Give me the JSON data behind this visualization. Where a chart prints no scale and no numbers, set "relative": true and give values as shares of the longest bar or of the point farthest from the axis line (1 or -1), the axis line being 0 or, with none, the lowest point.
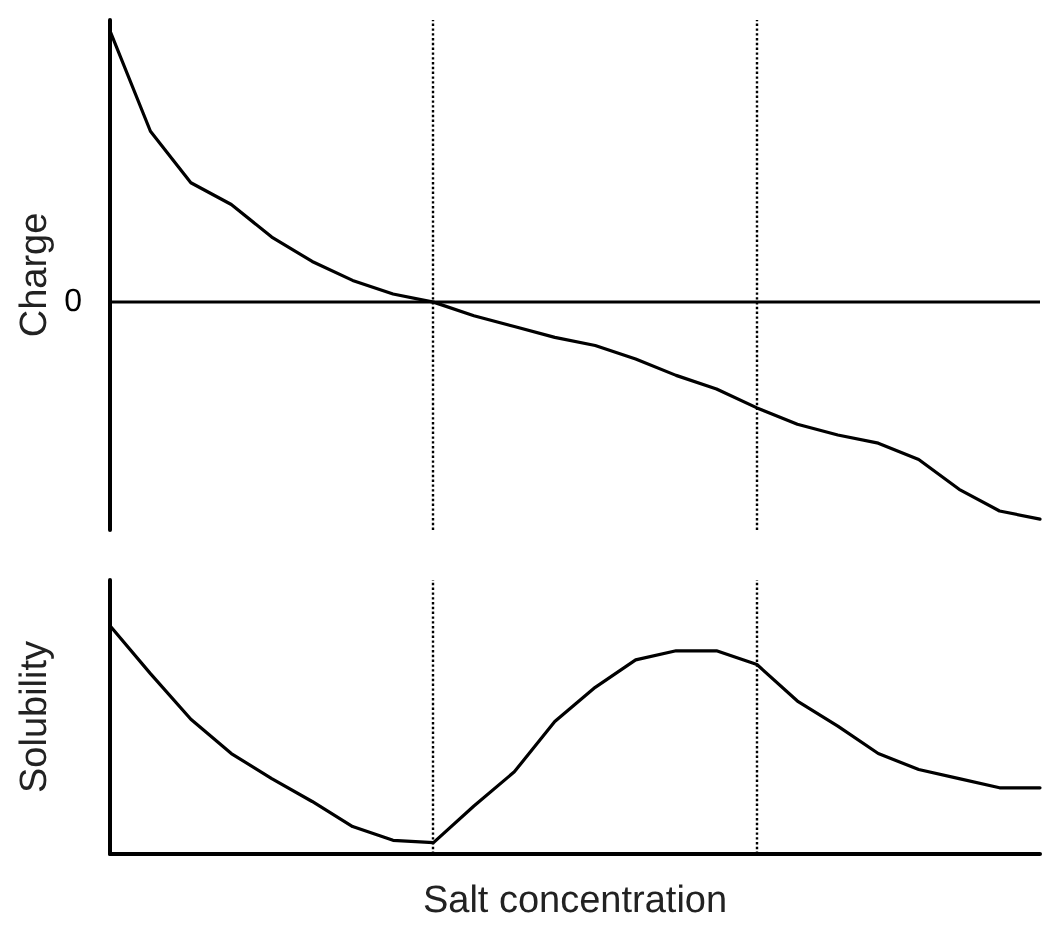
{
  "chart_data": [
    {
      "type": "line",
      "ylabel": "Charge",
      "relative": true,
      "tick_labels": false,
      "marker": "none",
      "line_style": "solid",
      "categories": [
        null,
        null,
        null,
        null,
        null,
        null,
        null,
        null,
        null,
        null,
        null,
        null,
        null,
        null,
        null,
        null,
        null,
        null,
        null,
        null,
        null,
        null,
        null,
        null
      ],
      "series": [
        {
          "color": "#000000",
          "values": [
            1.0,
            0.63,
            0.44,
            0.36,
            0.24,
            0.15,
            0.08,
            0.03,
            0,
            -0.05,
            -0.09,
            -0.13,
            -0.16,
            -0.21,
            -0.27,
            -0.32,
            -0.39,
            -0.45,
            -0.49,
            -0.52,
            -0.58,
            -0.69,
            -0.77,
            -0.8
          ]
        }
      ],
      "ref_lines": [
        {
          "axis": "y",
          "value": 0,
          "label": "0",
          "line_style": "solid",
          "color": "#000000"
        }
      ]
    },
    {
      "type": "line",
      "ylabel": "Solubility",
      "xlabel": "Salt concentration",
      "relative": true,
      "tick_labels": false,
      "marker": "none",
      "line_style": "solid",
      "categories": [
        null,
        null,
        null,
        null,
        null,
        null,
        null,
        null,
        null,
        null,
        null,
        null,
        null,
        null,
        null,
        null,
        null,
        null,
        null,
        null,
        null,
        null,
        null,
        null
      ],
      "series": [
        {
          "color": "#000000",
          "values": [
            1.0,
            0.79,
            0.59,
            0.44,
            0.33,
            0.23,
            0.12,
            0.06,
            0.05,
            0.21,
            0.36,
            0.58,
            0.73,
            0.85,
            0.89,
            0.89,
            0.83,
            0.67,
            0.56,
            0.44,
            0.37,
            0.33,
            0.29,
            0.29
          ]
        }
      ]
    }
  ]
}
